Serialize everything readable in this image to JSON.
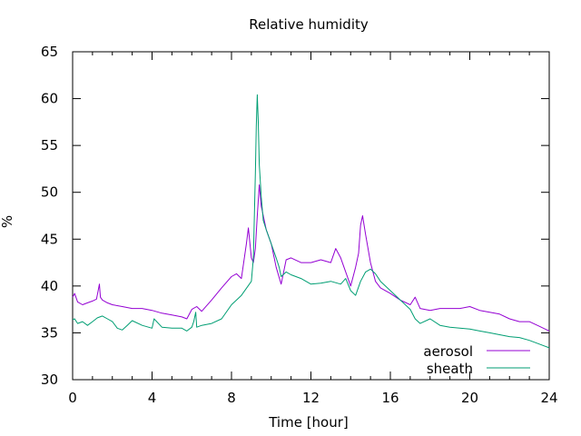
{
  "chart_data": {
    "type": "line",
    "title": "Relative humidity",
    "xlabel": "Time [hour]",
    "ylabel": "%",
    "xlim": [
      0,
      24
    ],
    "ylim": [
      30,
      65
    ],
    "xticks": [
      0,
      4,
      8,
      12,
      16,
      20,
      24
    ],
    "yticks": [
      30,
      35,
      40,
      45,
      50,
      55,
      60,
      65
    ],
    "grid": false,
    "legend": "bottom-right",
    "series": [
      {
        "name": "aerosol",
        "color": "#9400d3",
        "x": [
          0,
          0.1,
          0.25,
          0.5,
          0.75,
          1,
          1.2,
          1.35,
          1.4,
          1.5,
          1.75,
          2,
          2.5,
          3,
          3.5,
          4,
          4.5,
          5,
          5.5,
          5.75,
          6,
          6.25,
          6.5,
          7,
          7.5,
          8,
          8.25,
          8.5,
          8.75,
          8.85,
          9,
          9.1,
          9.2,
          9.3,
          9.4,
          9.5,
          9.75,
          10,
          10.25,
          10.5,
          10.75,
          11,
          11.5,
          12,
          12.5,
          13,
          13.25,
          13.5,
          13.75,
          14,
          14.25,
          14.4,
          14.5,
          14.6,
          14.75,
          15,
          15.25,
          15.5,
          16,
          16.5,
          17,
          17.25,
          17.5,
          18,
          18.5,
          19,
          19.5,
          20,
          20.5,
          21,
          21.5,
          22,
          22.5,
          23,
          23.5,
          24
        ],
        "values": [
          38.8,
          39.2,
          38.3,
          38.0,
          38.2,
          38.4,
          38.6,
          40.2,
          38.8,
          38.5,
          38.2,
          38.0,
          37.8,
          37.6,
          37.6,
          37.4,
          37.1,
          36.9,
          36.7,
          36.5,
          37.5,
          37.8,
          37.3,
          38.5,
          39.8,
          41.0,
          41.3,
          40.8,
          44.5,
          46.2,
          43.0,
          42.5,
          44.0,
          47.5,
          50.8,
          48.5,
          46.0,
          44.5,
          42.0,
          40.2,
          42.8,
          43.0,
          42.5,
          42.5,
          42.8,
          42.5,
          44.0,
          43.0,
          41.5,
          40.0,
          42.0,
          43.5,
          46.5,
          47.5,
          45.5,
          42.5,
          40.5,
          39.8,
          39.2,
          38.5,
          38.0,
          38.8,
          37.6,
          37.4,
          37.6,
          37.6,
          37.6,
          37.8,
          37.4,
          37.2,
          37.0,
          36.5,
          36.2,
          36.2,
          35.7,
          35.2
        ]
      },
      {
        "name": "sheath",
        "color": "#009e73",
        "x": [
          0,
          0.1,
          0.25,
          0.5,
          0.75,
          1,
          1.25,
          1.5,
          1.75,
          2,
          2.25,
          2.5,
          2.75,
          3,
          3.5,
          4,
          4.1,
          4.5,
          5,
          5.5,
          5.75,
          6,
          6.1,
          6.2,
          6.25,
          6.5,
          7,
          7.5,
          8,
          8.5,
          9,
          9.1,
          9.2,
          9.25,
          9.3,
          9.35,
          9.4,
          9.5,
          9.6,
          9.75,
          10,
          10.25,
          10.4,
          10.5,
          10.75,
          11,
          11.5,
          12,
          12.5,
          13,
          13.5,
          13.75,
          14,
          14.25,
          14.5,
          14.75,
          15,
          15.25,
          15.5,
          16,
          16.5,
          17,
          17.25,
          17.5,
          18,
          18.5,
          19,
          19.5,
          20,
          20.5,
          21,
          21.5,
          22,
          22.5,
          23,
          23.5,
          24
        ],
        "values": [
          36.4,
          36.5,
          36.0,
          36.2,
          35.8,
          36.2,
          36.6,
          36.8,
          36.5,
          36.2,
          35.5,
          35.3,
          35.8,
          36.3,
          35.8,
          35.5,
          36.5,
          35.6,
          35.5,
          35.5,
          35.2,
          35.6,
          36.2,
          37.2,
          35.6,
          35.8,
          36.0,
          36.5,
          38.0,
          39.0,
          40.5,
          43.0,
          52.0,
          57.0,
          60.4,
          57.5,
          53.0,
          49.5,
          47.0,
          46.0,
          44.5,
          43.0,
          42.0,
          41.0,
          41.5,
          41.2,
          40.8,
          40.2,
          40.3,
          40.5,
          40.2,
          40.8,
          39.5,
          39.0,
          40.5,
          41.5,
          41.8,
          41.3,
          40.5,
          39.5,
          38.5,
          37.5,
          36.5,
          36.0,
          36.5,
          35.8,
          35.6,
          35.5,
          35.4,
          35.2,
          35.0,
          34.8,
          34.6,
          34.5,
          34.2,
          33.8,
          33.4
        ]
      }
    ]
  }
}
